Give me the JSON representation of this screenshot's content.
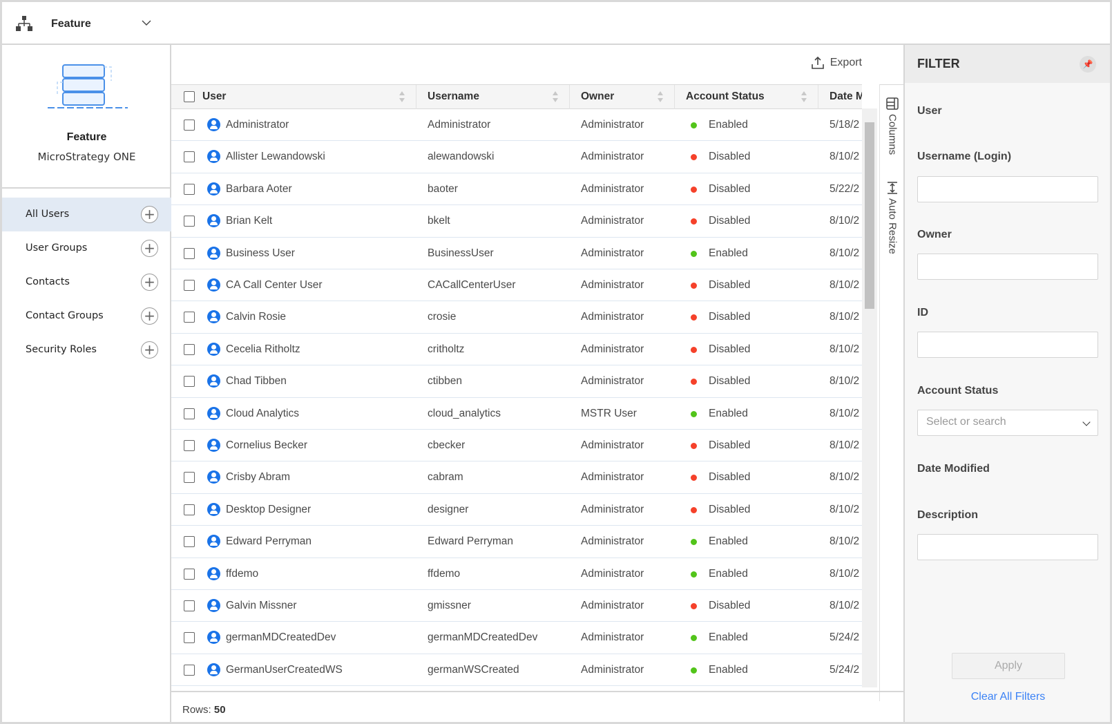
{
  "topbar": {
    "title": "Feature"
  },
  "sidebar": {
    "name": "Feature",
    "subtitle": "MicroStrategy ONE",
    "items": [
      {
        "label": "All Users",
        "active": true
      },
      {
        "label": "User Groups"
      },
      {
        "label": "Contacts"
      },
      {
        "label": "Contact Groups"
      },
      {
        "label": "Security Roles"
      }
    ]
  },
  "toolbar": {
    "export": "Export",
    "columns": "Columns",
    "auto_resize": "Auto Resize"
  },
  "table": {
    "headers": [
      "User",
      "Username",
      "Owner",
      "Account Status",
      "Date Mod"
    ],
    "rows": [
      {
        "user": "Administrator",
        "username": "Administrator",
        "owner": "Administrator",
        "status": "Enabled",
        "date": "5/18/2"
      },
      {
        "user": "Allister Lewandowski",
        "username": "alewandowski",
        "owner": "Administrator",
        "status": "Disabled",
        "date": "8/10/2"
      },
      {
        "user": "Barbara Aoter",
        "username": "baoter",
        "owner": "Administrator",
        "status": "Disabled",
        "date": "5/22/2"
      },
      {
        "user": "Brian Kelt",
        "username": "bkelt",
        "owner": "Administrator",
        "status": "Disabled",
        "date": "8/10/2"
      },
      {
        "user": "Business User",
        "username": "BusinessUser",
        "owner": "Administrator",
        "status": "Enabled",
        "date": "8/10/2"
      },
      {
        "user": "CA Call Center User",
        "username": "CACallCenterUser",
        "owner": "Administrator",
        "status": "Disabled",
        "date": "8/10/2"
      },
      {
        "user": "Calvin Rosie",
        "username": "crosie",
        "owner": "Administrator",
        "status": "Disabled",
        "date": "8/10/2"
      },
      {
        "user": "Cecelia Ritholtz",
        "username": "critholtz",
        "owner": "Administrator",
        "status": "Disabled",
        "date": "8/10/2"
      },
      {
        "user": "Chad Tibben",
        "username": "ctibben",
        "owner": "Administrator",
        "status": "Disabled",
        "date": "8/10/2"
      },
      {
        "user": "Cloud Analytics",
        "username": "cloud_analytics",
        "owner": "MSTR User",
        "status": "Enabled",
        "date": "8/10/2"
      },
      {
        "user": "Cornelius Becker",
        "username": "cbecker",
        "owner": "Administrator",
        "status": "Disabled",
        "date": "8/10/2"
      },
      {
        "user": "Crisby Abram",
        "username": "cabram",
        "owner": "Administrator",
        "status": "Disabled",
        "date": "8/10/2"
      },
      {
        "user": "Desktop Designer",
        "username": "designer",
        "owner": "Administrator",
        "status": "Disabled",
        "date": "8/10/2"
      },
      {
        "user": "Edward Perryman",
        "username": "Edward Perryman",
        "owner": "Administrator",
        "status": "Enabled",
        "date": "8/10/2"
      },
      {
        "user": "ffdemo",
        "username": "ffdemo",
        "owner": "Administrator",
        "status": "Enabled",
        "date": "8/10/2"
      },
      {
        "user": "Galvin Missner",
        "username": "gmissner",
        "owner": "Administrator",
        "status": "Disabled",
        "date": "8/10/2"
      },
      {
        "user": "germanMDCreatedDev",
        "username": "germanMDCreatedDev",
        "owner": "Administrator",
        "status": "Enabled",
        "date": "5/24/2"
      },
      {
        "user": "GermanUserCreatedWS",
        "username": "germanWSCreated",
        "owner": "Administrator",
        "status": "Enabled",
        "date": "5/24/2"
      }
    ]
  },
  "footer": {
    "rows_label": "Rows:",
    "rows_count": "50"
  },
  "filter": {
    "title": "FILTER",
    "user": "User",
    "username": "Username (Login)",
    "owner": "Owner",
    "id": "ID",
    "account_status": "Account Status",
    "status_placeholder": "Select or search",
    "date_modified": "Date Modified",
    "description": "Description",
    "apply": "Apply",
    "clear": "Clear All Filters"
  },
  "colors": {
    "enabled": "#52c41a",
    "disabled": "#f5412a",
    "accent": "#1a73e8",
    "link": "#3b82f6"
  }
}
